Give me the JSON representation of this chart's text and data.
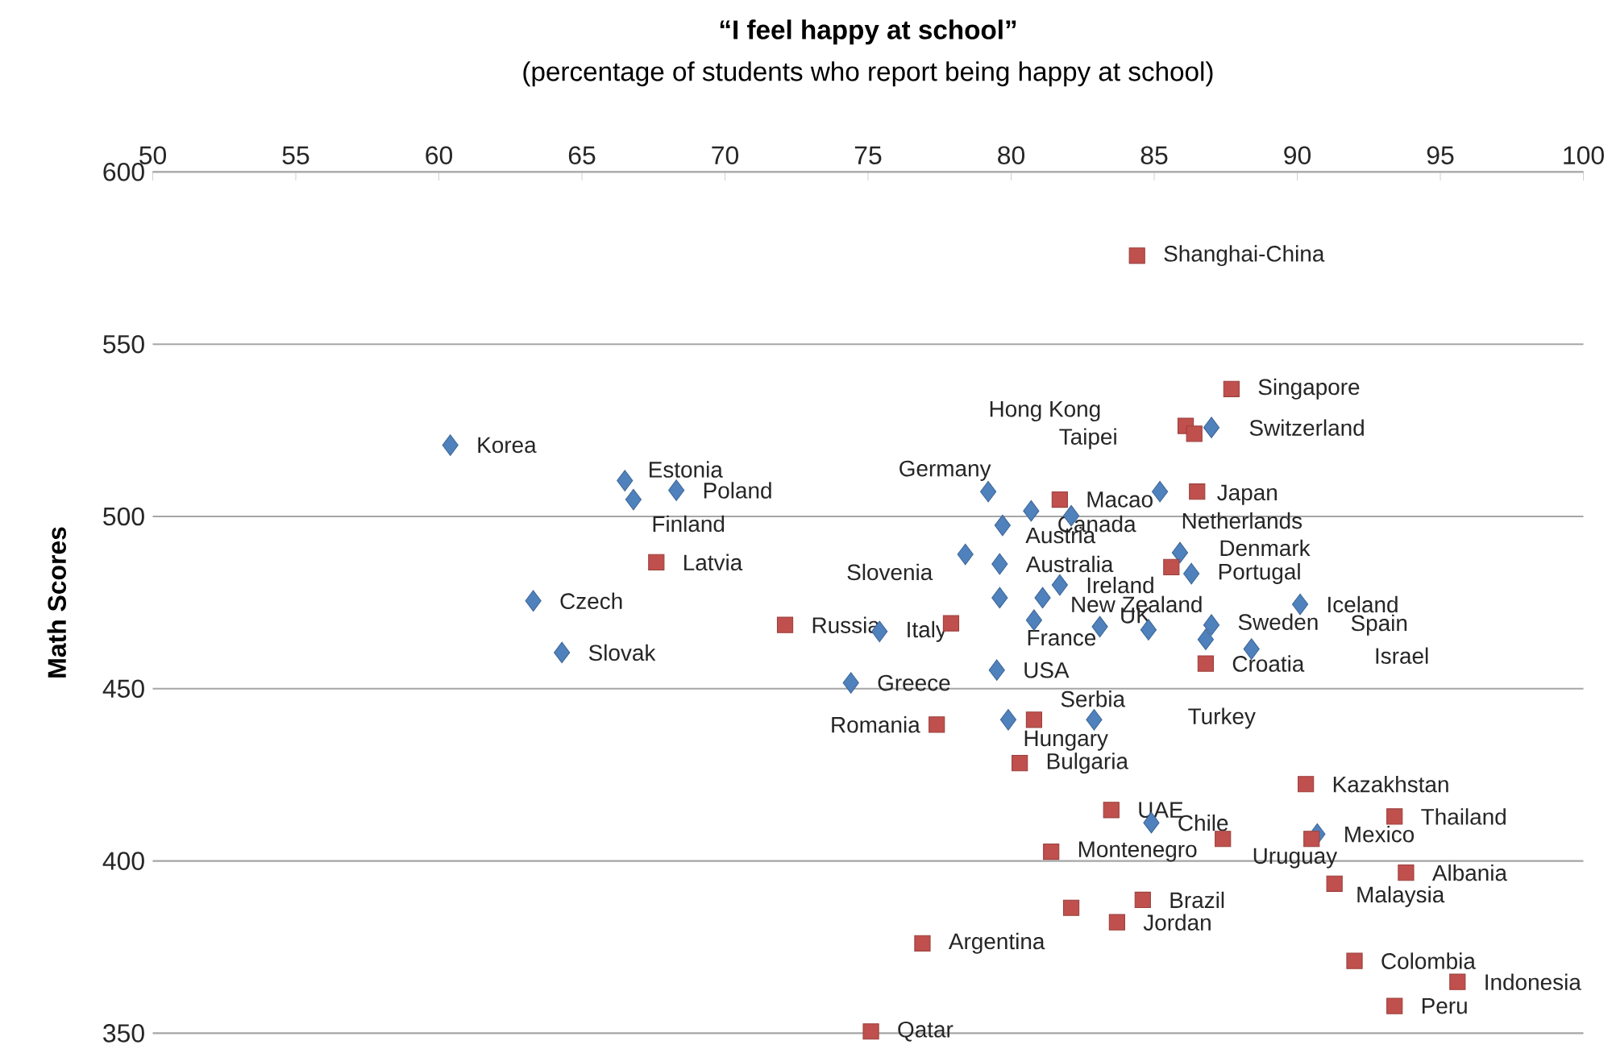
{
  "chart_data": {
    "type": "scatter",
    "title": "“I feel happy at school”",
    "subtitle": "(percentage of students who report being happy at school)",
    "ylabel": "Math Scores",
    "xlim": [
      50,
      100
    ],
    "xticks": [
      50,
      55,
      60,
      65,
      70,
      75,
      80,
      85,
      90,
      95,
      100
    ],
    "ylim": [
      350,
      600
    ],
    "yticks": [
      350,
      400,
      450,
      500,
      550,
      600
    ],
    "grid": "y",
    "series": [
      {
        "color": "#4f81bd",
        "marker": "diamond",
        "x": [
          60.4,
          66.5,
          66.8,
          68.3,
          63.3,
          64.3,
          75.4,
          74.4,
          79.2,
          80.7,
          79.7,
          85.2,
          82.1,
          78.4,
          79.6,
          81.7,
          81.1,
          79.6,
          80.8,
          83.1,
          85.9,
          86.3,
          90.1,
          84.8,
          87.0,
          86.8,
          88.4,
          87.0,
          79.5,
          79.9,
          82.9,
          84.9,
          90.7
        ],
        "values": [
          520.7,
          510.4,
          504.9,
          507.6,
          475.5,
          460.5,
          466.6,
          451.7,
          507.2,
          501.6,
          497.4,
          507.2,
          500.2,
          489.0,
          486.2,
          480.1,
          476.4,
          476.4,
          469.9,
          468.0,
          489.5,
          483.4,
          474.5,
          467.1,
          468.5,
          464.3,
          461.5,
          525.8,
          455.4,
          441.0,
          441.0,
          411.1,
          407.8
        ]
      },
      {
        "color": "#c0504d",
        "marker": "square",
        "x": [
          84.4,
          87.7,
          86.1,
          86.4,
          86.5,
          81.7,
          67.6,
          72.1,
          77.9,
          85.6,
          86.8,
          77.4,
          80.8,
          80.3,
          90.3,
          93.4,
          83.5,
          87.4,
          90.5,
          81.4,
          93.8,
          91.3,
          84.6,
          82.1,
          83.7,
          76.9,
          92.0,
          95.6,
          93.4,
          75.1
        ],
        "values": [
          575.7,
          537.0,
          526.3,
          524.0,
          507.2,
          504.9,
          486.7,
          468.5,
          469.0,
          485.3,
          457.3,
          439.6,
          441.0,
          428.4,
          422.3,
          412.9,
          414.8,
          406.4,
          406.4,
          402.7,
          396.6,
          393.4,
          388.7,
          386.4,
          382.2,
          376.1,
          371.0,
          364.9,
          357.9,
          350.5
        ]
      }
    ],
    "annotations": [
      {
        "text": "Korea",
        "x": 60.4,
        "y": 520.7
      },
      {
        "text": "Estonia",
        "x": 66.5,
        "y": 510.4
      },
      {
        "text": "Finland",
        "x": 66.8,
        "y": 504.9
      },
      {
        "text": "Poland",
        "x": 68.3,
        "y": 507.6
      },
      {
        "text": "Czech",
        "x": 63.3,
        "y": 475.5
      },
      {
        "text": "Slovak",
        "x": 64.3,
        "y": 460.5
      },
      {
        "text": "Italy",
        "x": 75.4,
        "y": 466.6
      },
      {
        "text": "Greece",
        "x": 74.4,
        "y": 451.7
      },
      {
        "text": "Germany",
        "x": 79.2,
        "y": 507.2
      },
      {
        "text": "Canada",
        "x": 80.7,
        "y": 501.6
      },
      {
        "text": "Austria",
        "x": 79.7,
        "y": 497.4
      },
      {
        "text": "Netherlands",
        "x": 85.2,
        "y": 507.2
      },
      {
        "text": "Slovenia",
        "x": 78.4,
        "y": 489.0
      },
      {
        "text": "Australia",
        "x": 79.6,
        "y": 486.2
      },
      {
        "text": "Ireland",
        "x": 81.7,
        "y": 480.1
      },
      {
        "text": "New Zealand",
        "x": 81.1,
        "y": 476.4
      },
      {
        "text": "France",
        "x": 80.8,
        "y": 469.9
      },
      {
        "text": "UK",
        "x": 83.1,
        "y": 468.0
      },
      {
        "text": "Denmark",
        "x": 85.9,
        "y": 489.5
      },
      {
        "text": "Portugal",
        "x": 86.3,
        "y": 483.4
      },
      {
        "text": "Iceland",
        "x": 90.1,
        "y": 474.5
      },
      {
        "text": "Sweden",
        "x": 87.0,
        "y": 468.5
      },
      "Spain",
      "Israel",
      {
        "text": "Switzerland",
        "x": 87.0,
        "y": 525.8
      },
      {
        "text": "USA",
        "x": 79.5,
        "y": 455.4
      },
      {
        "text": "Hungary",
        "x": 79.9,
        "y": 441.0
      },
      "Turkey",
      {
        "text": "Chile",
        "x": 84.9,
        "y": 411.1
      },
      {
        "text": "Mexico",
        "x": 90.7,
        "y": 407.8
      },
      {
        "text": "Shanghai-China",
        "x": 84.4,
        "y": 575.7
      },
      {
        "text": "Singapore",
        "x": 87.7,
        "y": 537.0
      },
      "Hong Kong",
      "Taipei",
      {
        "text": "Japan",
        "x": 86.5,
        "y": 507.2
      },
      {
        "text": "Macao",
        "x": 81.7,
        "y": 504.9
      },
      {
        "text": "Latvia",
        "x": 67.6,
        "y": 486.7
      },
      {
        "text": "Russia",
        "x": 72.1,
        "y": 468.5
      },
      {
        "text": "Croatia",
        "x": 86.8,
        "y": 457.3
      },
      {
        "text": "Romania",
        "x": 77.4,
        "y": 439.6
      },
      {
        "text": "Serbia",
        "x": 80.8,
        "y": 441.0
      },
      {
        "text": "Bulgaria",
        "x": 80.3,
        "y": 428.4
      },
      {
        "text": "Kazakhstan",
        "x": 90.3,
        "y": 422.3
      },
      {
        "text": "Thailand",
        "x": 93.4,
        "y": 412.9
      },
      {
        "text": "UAE",
        "x": 83.5,
        "y": 414.8
      },
      {
        "text": "Uruguay",
        "x": 87.4,
        "y": 406.4
      },
      {
        "text": "Montenegro",
        "x": 81.4,
        "y": 402.7
      },
      {
        "text": "Albania",
        "x": 93.8,
        "y": 396.6
      },
      {
        "text": "Malaysia",
        "x": 91.3,
        "y": 393.4
      },
      {
        "text": "Brazil",
        "x": 84.6,
        "y": 388.7
      },
      {
        "text": "Jordan",
        "x": 83.7,
        "y": 382.2
      },
      {
        "text": "Argentina",
        "x": 76.9,
        "y": 376.1
      },
      {
        "text": "Colombia",
        "x": 92.0,
        "y": 371.0
      },
      {
        "text": "Indonesia",
        "x": 95.6,
        "y": 364.9
      },
      {
        "text": "Peru",
        "x": 93.4,
        "y": 357.9
      },
      {
        "text": "Qatar",
        "x": 75.1,
        "y": 350.5
      }
    ]
  }
}
